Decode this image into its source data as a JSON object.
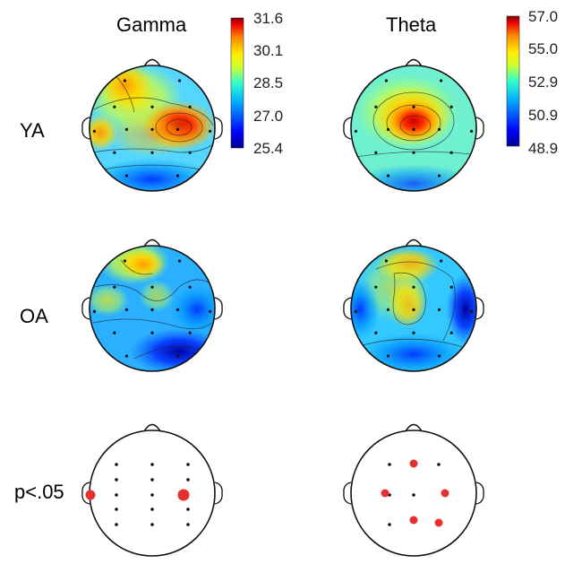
{
  "columns": [
    "Gamma",
    "Theta"
  ],
  "rows": [
    "YA",
    "OA",
    "p<.05"
  ],
  "colorbars": [
    {
      "column": "Gamma",
      "ticks": [
        "31.6",
        "30.1",
        "28.5",
        "27.0",
        "25.4"
      ]
    },
    {
      "column": "Theta",
      "ticks": [
        "57.0",
        "55.0",
        "52.9",
        "50.9",
        "48.9"
      ]
    }
  ],
  "colormap": [
    "#00008f",
    "#0000ff",
    "#00aaff",
    "#33ffcc",
    "#ccff33",
    "#ffee00",
    "#ff8800",
    "#ee0000",
    "#800000"
  ],
  "significant_color": "#e53030"
}
